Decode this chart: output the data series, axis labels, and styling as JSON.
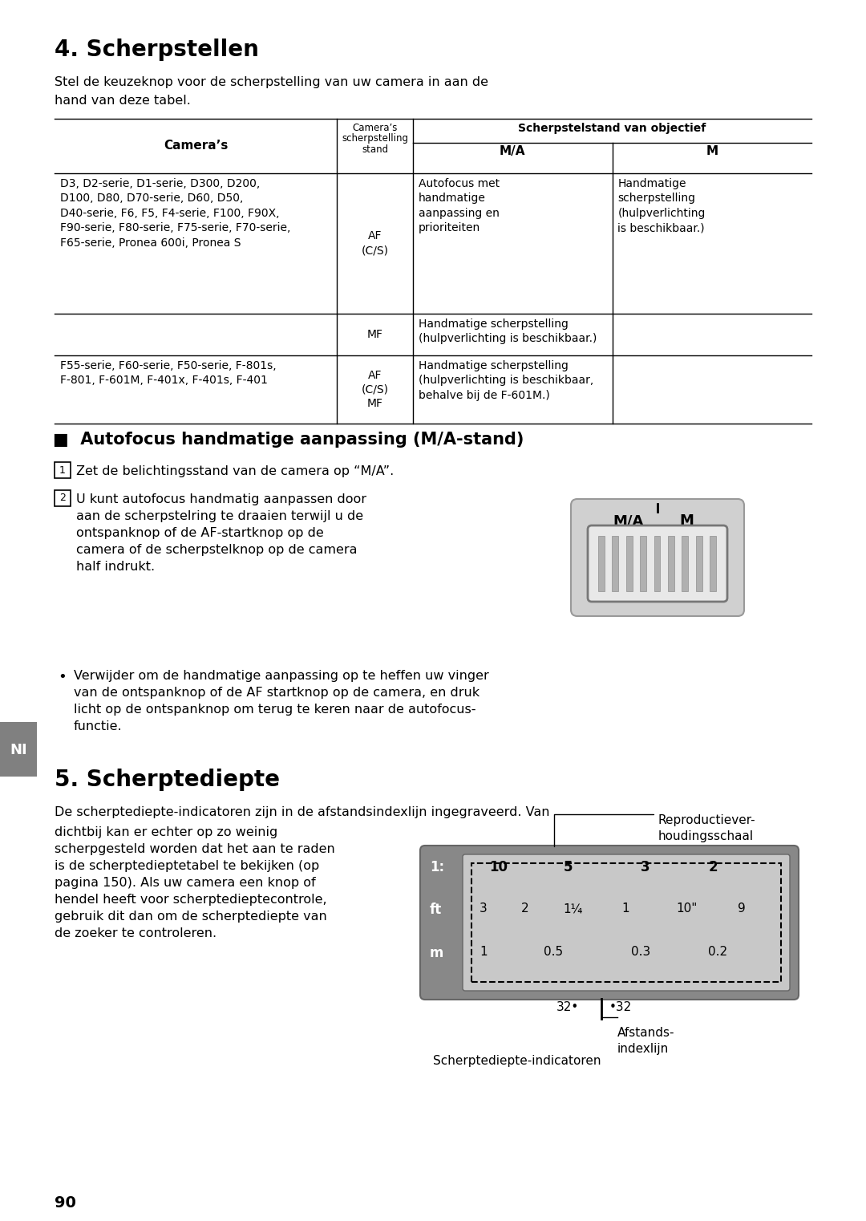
{
  "bg_color": "#ffffff",
  "section4_title": "4. Scherpstellen",
  "section4_intro_l1": "Stel de keuzeknop voor de scherpstelling van uw camera in aan de",
  "section4_intro_l2": "hand van deze tabel.",
  "table_cam_header": "Camera’s",
  "table_col2_l1": "Camera’s",
  "table_col2_l2": "scherpstelling",
  "table_col2_l3": "stand",
  "table_col3_header": "Scherpstelstand van objectief",
  "table_col3a": "M/A",
  "table_col3b": "M",
  "row1_cameras": "D3, D2-serie, D1-serie, D300, D200,\nD100, D80, D70-serie, D60, D50,\nD40-serie, F6, F5, F4-serie, F100, F90X,\nF90-serie, F80-serie, F75-serie, F70-serie,\nF65-serie, Pronea 600i, Pronea S",
  "row1_af": "AF\n(C/S)",
  "row1_ma": "Autofocus met\nhandmatige\naanpassing en\nprioriteiten",
  "row1_m": "Handmatige\nscherpstelling\n(hulpverlichting\nis beschikbaar.)",
  "row1_mf": "MF",
  "row1_mf_text": "Handmatige scherpstelling\n(hulpverlichting is beschikbaar.)",
  "row2_cameras": "F55-serie, F60-serie, F50-serie, F-801s,\nF-801, F-601M, F-401x, F-401s, F-401",
  "row2_af": "AF\n(C/S)\nMF",
  "row2_ma": "Handmatige scherpstelling\n(hulpverlichting is beschikbaar,\nbehalve bij de F-601M.)",
  "section_ma_title": "■  Autofocus handmatige aanpassing (M/A-stand)",
  "step1_text": "Zet de belichtingsstand van de camera op “M/A”.",
  "step2_text": "U kunt autofocus handmatig aanpassen door\naan de scherpstelring te draaien terwijl u de\nontspanknop of de AF-startknop op de\ncamera of de scherpstelknop op de camera\nhalf indrukt.",
  "bullet_text": "Verwijder om de handmatige aanpassing op te heffen uw vinger\nvan de ontspanknop of de AF startknop op de camera, en druk\nlicht op de ontspanknop om terug te keren naar de autofocus-\nfunctie.",
  "section5_title": "5. Scherptediepte",
  "section5_intro": "De scherptediepte-indicatoren zijn in de afstandsindexlijn ingegraveerd. Van",
  "section5_col1": "dichtbij kan er echter op zo weinig\nscherpgesteld worden dat het aan te raden\nis de scherptedieptetabel te bekijken (op\npagina 150). Als uw camera een knop of\nhendel heeft voor scherptedieptecontrole,\ngebruik dit dan om de scherptediepte van\nde zoeker te controleren.",
  "repro_label": "Reproductiever-\nhoudingsschaal",
  "afstands_label": "Afstands-\nindexlijn",
  "indicators_label": "Scherptediepte-indicatoren",
  "page_number": "90",
  "ni_label": "NI",
  "ni_bg": "#808080"
}
